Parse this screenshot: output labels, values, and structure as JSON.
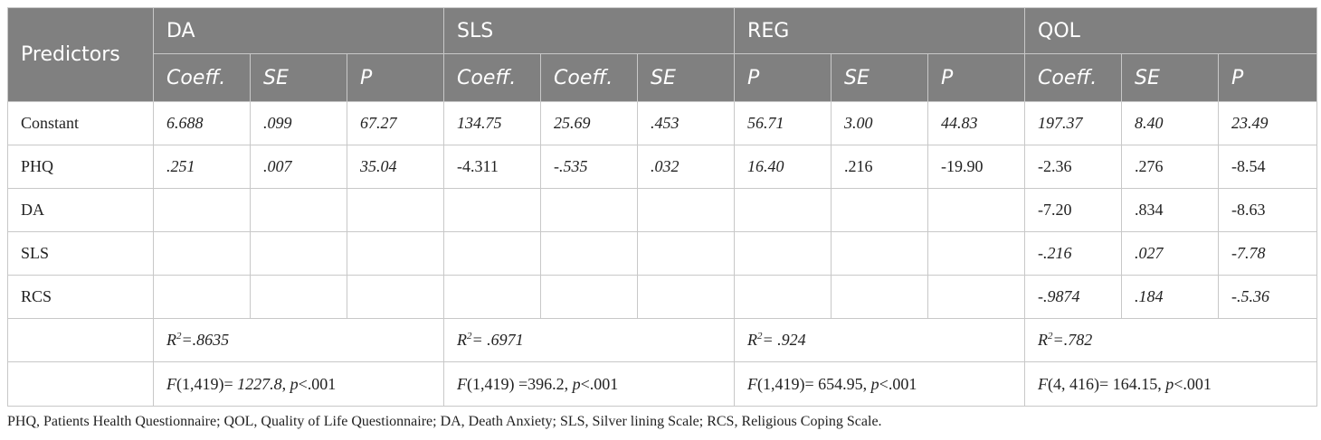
{
  "header": {
    "predictors_label": "Predictors",
    "groups": [
      "DA",
      "SLS",
      "REG",
      "QOL"
    ],
    "subheaders": [
      "Coeff.",
      "SE",
      "P",
      "Coeff.",
      "Coeff.",
      "SE",
      "P",
      "SE",
      "P",
      "Coeff.",
      "SE",
      "P"
    ]
  },
  "rows": [
    {
      "label": "Constant",
      "cells": [
        "6.688",
        ".099",
        "67.27",
        "134.75",
        "25.69",
        ".453",
        "56.71",
        "3.00",
        "44.83",
        "197.37",
        "8.40",
        "23.49"
      ]
    },
    {
      "label": "PHQ",
      "cells": [
        ".251",
        ".007",
        "35.04",
        "-4.311",
        "-.535",
        ".032",
        "16.40",
        ".216",
        "-19.90",
        "-2.36",
        ".276",
        "-8.54"
      ]
    },
    {
      "label": "DA",
      "cells": [
        "",
        "",
        "",
        "",
        "",
        "",
        "",
        "",
        "",
        "-7.20",
        ".834",
        "-8.63"
      ]
    },
    {
      "label": "SLS",
      "cells": [
        "",
        "",
        "",
        "",
        "",
        "",
        "",
        "",
        "",
        "-.216",
        ".027",
        "-7.78"
      ]
    },
    {
      "label": "RCS",
      "cells": [
        "",
        "",
        "",
        "",
        "",
        "",
        "",
        "",
        "",
        "-.9874",
        ".184",
        "-.5.36"
      ]
    }
  ],
  "r2": [
    {
      "r": "R",
      "exp": "2",
      "rest": "=.8635"
    },
    {
      "r": "R",
      "exp": "2",
      "rest": "= .6971"
    },
    {
      "r": "R",
      "exp": "2",
      "rest": "= .924"
    },
    {
      "r": "R",
      "exp": "2",
      "rest": "=.782"
    }
  ],
  "fstats": [
    {
      "f": "F",
      "df": "(1,419)= ",
      "val": "1227.8",
      "sep": ", ",
      "p": "p",
      "pval": "<.001"
    },
    {
      "f": "F",
      "df": "(1,419) =",
      "val": "396.2",
      "sep": ", ",
      "p": "p",
      "pval": "<.001"
    },
    {
      "f": "F",
      "df": "(1,419)= ",
      "val": "654.95",
      "sep": ", ",
      "p": "p",
      "pval": "<.001"
    },
    {
      "f": "F",
      "df": "(4, 416)= ",
      "val": "164.15",
      "sep": ", ",
      "p": "p",
      "pval": "<.001"
    }
  ],
  "footnote": "PHQ, Patients Health Questionnaire; QOL, Quality of Life Questionnaire; DA, Death Anxiety; SLS, Silver lining Scale; RCS, Religious Coping Scale."
}
